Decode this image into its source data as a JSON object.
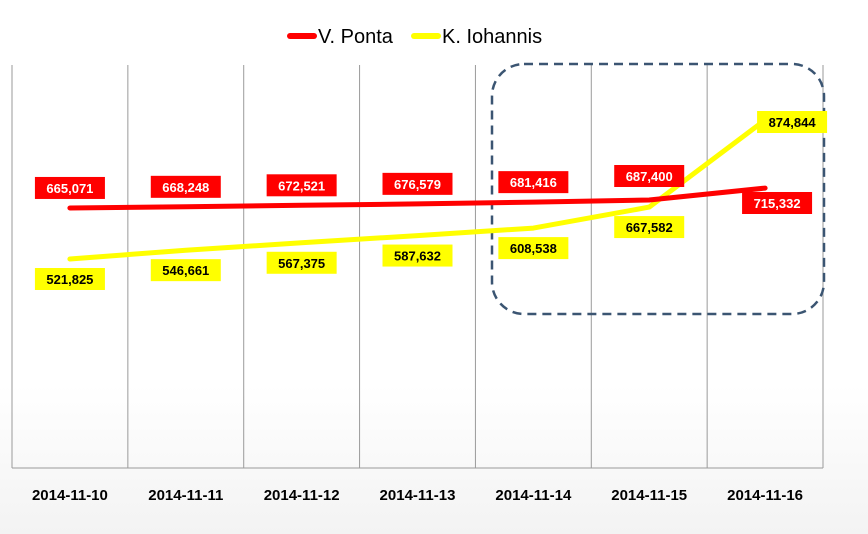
{
  "chart_data": {
    "type": "line",
    "categories": [
      "2014-11-10",
      "2014-11-11",
      "2014-11-12",
      "2014-11-13",
      "2014-11-14",
      "2014-11-15",
      "2014-11-16"
    ],
    "series": [
      {
        "name": "V. Ponta",
        "color": "#ff0000",
        "label_text_color": "#ffffff",
        "values": [
          665071,
          668248,
          672521,
          676579,
          681416,
          687400,
          715332
        ],
        "labels": [
          "665,071",
          "668,248",
          "672,521",
          "676,579",
          "681,416",
          "687,400",
          "715,332"
        ]
      },
      {
        "name": "K. Iohannis",
        "color": "#ffff00",
        "label_text_color": "#000000",
        "values": [
          521825,
          546661,
          567375,
          587632,
          608538,
          667582,
          874844
        ],
        "labels": [
          "521,825",
          "546,661",
          "567,375",
          "587,632",
          "608,538",
          "667,582",
          "874,844"
        ]
      }
    ],
    "legend_position": "top-center",
    "gridlines": "vertical",
    "highlight": {
      "style": "dashed rounded rectangle",
      "color": "#3b5572",
      "covers_categories": [
        "2014-11-14",
        "2014-11-15",
        "2014-11-16"
      ]
    }
  }
}
